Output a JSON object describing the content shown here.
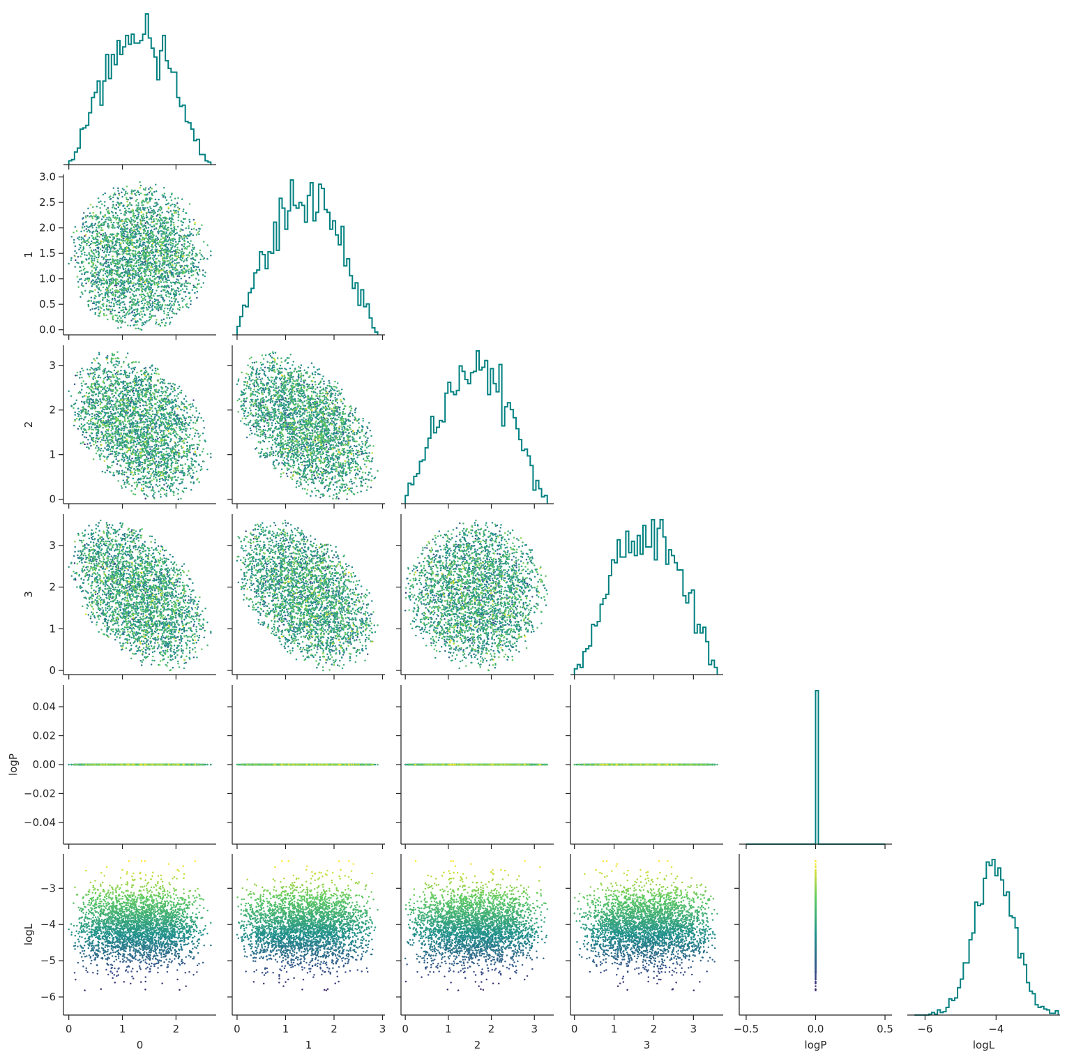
{
  "figure": {
    "colors": {
      "histogram": "#008080",
      "axis": "#262626",
      "colormap": [
        "#440154",
        "#3b528b",
        "#21918c",
        "#5ec962",
        "#fde725"
      ]
    },
    "colormap_name": "viridis",
    "labels": [
      "0",
      "1",
      "2",
      "3",
      "logP",
      "logL"
    ]
  },
  "chart_data": {
    "type": "scatter",
    "layout": "corner-plot",
    "n_points": 3000,
    "color_by": "logL",
    "variables": [
      {
        "name": "0",
        "range": [
          0.0,
          2.65
        ],
        "lim": [
          -0.1,
          2.75
        ],
        "ticks": [
          0,
          1,
          2
        ],
        "tick_labels": [
          "0",
          "1",
          "2"
        ]
      },
      {
        "name": "1",
        "range": [
          0.0,
          2.9
        ],
        "lim": [
          -0.1,
          3.05
        ],
        "ticks": [
          0.0,
          0.5,
          1.0,
          1.5,
          2.0,
          2.5,
          3.0
        ],
        "tick_labels": [
          "0.0",
          "0.5",
          "1.0",
          "1.5",
          "2.0",
          "2.5",
          "3.0"
        ],
        "x_ticks": [
          0,
          1,
          2,
          3
        ],
        "x_tick_labels": [
          "0",
          "1",
          "2",
          "3"
        ]
      },
      {
        "name": "2",
        "range": [
          0.0,
          3.3
        ],
        "lim": [
          -0.1,
          3.45
        ],
        "ticks": [
          0,
          1,
          2,
          3
        ],
        "tick_labels": [
          "0",
          "1",
          "2",
          "3"
        ]
      },
      {
        "name": "3",
        "range": [
          0.0,
          3.6
        ],
        "lim": [
          -0.1,
          3.75
        ],
        "ticks": [
          0,
          1,
          2,
          3
        ],
        "tick_labels": [
          "0",
          "1",
          "2",
          "3"
        ]
      },
      {
        "name": "logP",
        "range": [
          0.0,
          0.0
        ],
        "lim": [
          -0.055,
          0.055
        ],
        "ticks": [
          -0.04,
          -0.02,
          0.0,
          0.02,
          0.04
        ],
        "tick_labels": [
          "−0.04",
          "−0.02",
          "0.00",
          "0.02",
          "0.04"
        ],
        "x_lim": [
          -0.55,
          0.55
        ],
        "x_ticks": [
          -0.5,
          0.0,
          0.5
        ],
        "x_tick_labels": [
          "−0.5",
          "0.0",
          "0.5"
        ]
      },
      {
        "name": "logL",
        "mean": -4.05,
        "sd": 0.55,
        "min": -6.3,
        "max": -2.25,
        "lim": [
          -6.5,
          -2.05
        ],
        "ticks": [
          -6,
          -5,
          -4,
          -3
        ],
        "tick_labels": [
          "−6",
          "−5",
          "−4",
          "−3"
        ],
        "x_lim": [
          -6.5,
          -2.2
        ],
        "x_ticks": [
          -6,
          -4
        ],
        "x_tick_labels": [
          "−6",
          "−4"
        ]
      }
    ],
    "correlations": [
      {
        "pair": [
          "0",
          "1"
        ],
        "r": 0.0
      },
      {
        "pair": [
          "0",
          "2"
        ],
        "r": -0.35
      },
      {
        "pair": [
          "0",
          "3"
        ],
        "r": -0.45
      },
      {
        "pair": [
          "1",
          "2"
        ],
        "r": -0.45
      },
      {
        "pair": [
          "1",
          "3"
        ],
        "r": -0.45
      },
      {
        "pair": [
          "2",
          "3"
        ],
        "r": 0.0
      }
    ],
    "histogram": {
      "bins": 50,
      "style": "step"
    }
  }
}
